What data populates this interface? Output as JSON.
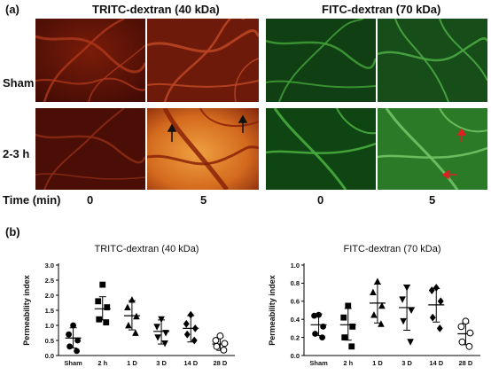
{
  "figure": {
    "label_a": "(a)",
    "label_b": "(b)",
    "col_title_left": "TRITC-dextran (40 kDa)",
    "col_title_right": "FITC-dextran (70 kDa)",
    "row_label_top": "Sham",
    "row_label_bottom": "2-3 h",
    "time_label": "Time (min)",
    "time_values": [
      "0",
      "5",
      "0",
      "5"
    ]
  },
  "colors": {
    "tritc_dark": "#4a0e06",
    "tritc_mid": "#7a1c0a",
    "tritc_bright": "#e07a22",
    "fitc_dark": "#0c3a0e",
    "fitc_mid": "#2f8a2a"
  },
  "chart_data": [
    {
      "type": "scatter",
      "title": "TRITC-dextran (40 kDa)",
      "ylabel": "Permeability index",
      "xlabel": "",
      "ylim": [
        0,
        3
      ],
      "yticks": [
        "0.0",
        "0.5",
        "1.0",
        "1.5",
        "2.0",
        "2.5",
        "3.0"
      ],
      "categories": [
        "Sham",
        "2 h",
        "1 D",
        "3 D",
        "14 D",
        "28 D"
      ],
      "markers": [
        "circle",
        "square",
        "triangle",
        "triangle-down",
        "diamond",
        "circle-open"
      ],
      "mean": [
        0.58,
        1.55,
        1.32,
        0.8,
        0.9,
        0.38
      ],
      "sd_low": [
        0.25,
        1.18,
        0.85,
        0.38,
        0.45,
        0.17
      ],
      "sd_high": [
        0.92,
        1.95,
        1.82,
        1.18,
        1.32,
        0.62
      ],
      "points": [
        [
          1.0,
          0.7,
          0.5,
          0.3,
          0.15
        ],
        [
          2.35,
          1.8,
          1.6,
          1.2,
          1.1
        ],
        [
          1.85,
          1.6,
          1.3,
          1.0,
          0.75
        ],
        [
          1.2,
          0.95,
          0.75,
          0.6,
          0.4
        ],
        [
          1.35,
          1.05,
          0.9,
          0.7,
          0.5
        ],
        [
          0.65,
          0.5,
          0.4,
          0.3,
          0.18
        ]
      ]
    },
    {
      "type": "scatter",
      "title": "FITC-dextran (70 kDa)",
      "ylabel": "Permeability index",
      "xlabel": "",
      "ylim": [
        0,
        1
      ],
      "yticks": [
        "0.0",
        "0.2",
        "0.4",
        "0.6",
        "0.8",
        "1.0"
      ],
      "categories": [
        "Sham",
        "2 h",
        "1 D",
        "3 D",
        "14 D",
        "28 D"
      ],
      "markers": [
        "circle",
        "square",
        "triangle",
        "triangle-down",
        "diamond",
        "circle-open"
      ],
      "mean": [
        0.34,
        0.34,
        0.58,
        0.53,
        0.56,
        0.24
      ],
      "sd_low": [
        0.22,
        0.17,
        0.36,
        0.28,
        0.37,
        0.12
      ],
      "sd_high": [
        0.46,
        0.52,
        0.79,
        0.78,
        0.74,
        0.36
      ],
      "points": [
        [
          0.45,
          0.44,
          0.32,
          0.24,
          0.2
        ],
        [
          0.55,
          0.42,
          0.32,
          0.2,
          0.1
        ],
        [
          0.82,
          0.7,
          0.55,
          0.45,
          0.35
        ],
        [
          0.75,
          0.62,
          0.5,
          0.38,
          0.15
        ],
        [
          0.75,
          0.72,
          0.6,
          0.42,
          0.3
        ],
        [
          0.38,
          0.32,
          0.25,
          0.15,
          0.1
        ]
      ]
    }
  ]
}
